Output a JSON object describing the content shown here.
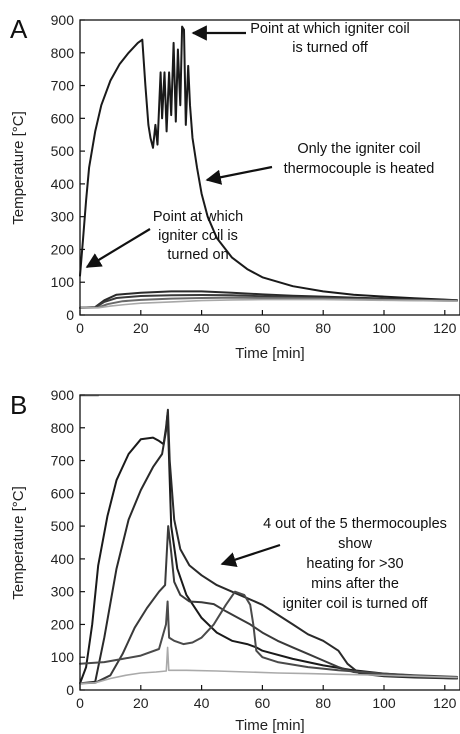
{
  "chart_data": [
    {
      "panel": "A",
      "type": "line",
      "xlabel": "Time [min]",
      "ylabel": "Temperature [°C]",
      "xlim": [
        0,
        125
      ],
      "ylim": [
        0,
        900
      ],
      "xticks": [
        "0",
        "20",
        "40",
        "60",
        "80",
        "100",
        "120"
      ],
      "yticks": [
        "0",
        "100",
        "200",
        "300",
        "400",
        "500",
        "600",
        "700",
        "800",
        "900"
      ],
      "grid": false,
      "legend": "none",
      "series": [
        {
          "color": "#1a1a1a",
          "points": [
            [
              0,
              120
            ],
            [
              1,
              230
            ],
            [
              2,
              350
            ],
            [
              3,
              450
            ],
            [
              5,
              560
            ],
            [
              7,
              640
            ],
            [
              10,
              715
            ],
            [
              13,
              765
            ],
            [
              16,
              800
            ],
            [
              19,
              830
            ],
            [
              20.5,
              840
            ],
            [
              21.5,
              700
            ],
            [
              22.5,
              580
            ],
            [
              23.2,
              540
            ],
            [
              24,
              510
            ],
            [
              24.8,
              580
            ],
            [
              25.5,
              520
            ],
            [
              26.5,
              740
            ],
            [
              27,
              600
            ],
            [
              27.8,
              740
            ],
            [
              28.5,
              560
            ],
            [
              29.3,
              740
            ],
            [
              30,
              610
            ],
            [
              30.8,
              830
            ],
            [
              31.5,
              590
            ],
            [
              32.2,
              810
            ],
            [
              33,
              640
            ],
            [
              33.6,
              880
            ],
            [
              34.2,
              870
            ],
            [
              34.8,
              580
            ],
            [
              35.6,
              760
            ],
            [
              36.2,
              640
            ],
            [
              37,
              540
            ],
            [
              38.5,
              450
            ],
            [
              40,
              370
            ],
            [
              42,
              300
            ],
            [
              45,
              235
            ],
            [
              50,
              175
            ],
            [
              55,
              140
            ],
            [
              60,
              115
            ],
            [
              70,
              88
            ],
            [
              80,
              72
            ],
            [
              90,
              62
            ],
            [
              100,
              56
            ],
            [
              110,
              51
            ],
            [
              120,
              47
            ],
            [
              124,
              45
            ]
          ]
        },
        {
          "color": "#2a2a2a",
          "points": [
            [
              0,
              22
            ],
            [
              5,
              24
            ],
            [
              8,
              45
            ],
            [
              12,
              62
            ],
            [
              20,
              68
            ],
            [
              30,
              72
            ],
            [
              40,
              72
            ],
            [
              50,
              68
            ],
            [
              60,
              63
            ],
            [
              70,
              59
            ],
            [
              80,
              56
            ],
            [
              90,
              53
            ],
            [
              100,
              50
            ],
            [
              110,
              48
            ],
            [
              124,
              45
            ]
          ]
        },
        {
          "color": "#3a3a3a",
          "points": [
            [
              0,
              22
            ],
            [
              5,
              23
            ],
            [
              8,
              40
            ],
            [
              12,
              52
            ],
            [
              20,
              58
            ],
            [
              30,
              60
            ],
            [
              40,
              61
            ],
            [
              50,
              60
            ],
            [
              60,
              57
            ],
            [
              70,
              54
            ],
            [
              80,
              52
            ],
            [
              90,
              50
            ],
            [
              100,
              48
            ],
            [
              110,
              46
            ],
            [
              124,
              44
            ]
          ]
        },
        {
          "color": "#6a6a6a",
          "points": [
            [
              0,
              22
            ],
            [
              6,
              23
            ],
            [
              9,
              33
            ],
            [
              14,
              42
            ],
            [
              20,
              46
            ],
            [
              30,
              50
            ],
            [
              40,
              52
            ],
            [
              50,
              53
            ],
            [
              60,
              52
            ],
            [
              70,
              51
            ],
            [
              80,
              50
            ],
            [
              90,
              48
            ],
            [
              100,
              46
            ],
            [
              110,
              45
            ],
            [
              124,
              43
            ]
          ]
        },
        {
          "color": "#a8a8a8",
          "points": [
            [
              0,
              22
            ],
            [
              6,
              22
            ],
            [
              10,
              27
            ],
            [
              15,
              32
            ],
            [
              20,
              36
            ],
            [
              30,
              40
            ],
            [
              40,
              44
            ],
            [
              50,
              46
            ],
            [
              60,
              47
            ],
            [
              70,
              47
            ],
            [
              80,
              47
            ],
            [
              90,
              46
            ],
            [
              100,
              45
            ],
            [
              110,
              44
            ],
            [
              124,
              42
            ]
          ]
        }
      ],
      "annotations": [
        "Point at which igniter coil is turned off",
        "Only the igniter coil thermocouple is heated",
        "Point at which igniter coil is turned on"
      ]
    },
    {
      "panel": "B",
      "type": "line",
      "xlabel": "Time [min]",
      "ylabel": "Temperature [°C]",
      "xlim": [
        0,
        125
      ],
      "ylim": [
        0,
        900
      ],
      "xticks": [
        "0",
        "20",
        "40",
        "60",
        "80",
        "100",
        "120"
      ],
      "yticks": [
        "0",
        "100",
        "200",
        "300",
        "400",
        "500",
        "600",
        "700",
        "800",
        "900"
      ],
      "grid": false,
      "legend": "none",
      "series": [
        {
          "color": "#1a1a1a",
          "points": [
            [
              0,
              20
            ],
            [
              2,
              70
            ],
            [
              4,
              200
            ],
            [
              6,
              380
            ],
            [
              9,
              530
            ],
            [
              12,
              640
            ],
            [
              16,
              720
            ],
            [
              20,
              765
            ],
            [
              24,
              770
            ],
            [
              26,
              760
            ],
            [
              27.5,
              750
            ],
            [
              28.3,
              800
            ],
            [
              28.8,
              845
            ],
            [
              29.3,
              700
            ],
            [
              30,
              500
            ],
            [
              32,
              370
            ],
            [
              35,
              290
            ],
            [
              40,
              220
            ],
            [
              45,
              175
            ],
            [
              50,
              150
            ],
            [
              55,
              140
            ],
            [
              58,
              130
            ],
            [
              60,
              120
            ],
            [
              70,
              95
            ],
            [
              80,
              75
            ],
            [
              90,
              60
            ],
            [
              100,
              50
            ],
            [
              110,
              44
            ],
            [
              124,
              38
            ]
          ]
        },
        {
          "color": "#2a2a2a",
          "points": [
            [
              0,
              20
            ],
            [
              5,
              25
            ],
            [
              8,
              160
            ],
            [
              12,
              370
            ],
            [
              16,
              520
            ],
            [
              20,
              610
            ],
            [
              24,
              680
            ],
            [
              27,
              720
            ],
            [
              28.3,
              790
            ],
            [
              28.9,
              855
            ],
            [
              29.5,
              700
            ],
            [
              31,
              520
            ],
            [
              33,
              430
            ],
            [
              36,
              380
            ],
            [
              40,
              350
            ],
            [
              45,
              320
            ],
            [
              50,
              300
            ],
            [
              55,
              280
            ],
            [
              60,
              260
            ],
            [
              65,
              230
            ],
            [
              70,
              200
            ],
            [
              75,
              170
            ],
            [
              80,
              150
            ],
            [
              85,
              120
            ],
            [
              88,
              80
            ],
            [
              92,
              50
            ],
            [
              100,
              42
            ],
            [
              110,
              38
            ],
            [
              124,
              35
            ]
          ]
        },
        {
          "color": "#3a3a3a",
          "points": [
            [
              0,
              20
            ],
            [
              5,
              22
            ],
            [
              10,
              45
            ],
            [
              14,
              110
            ],
            [
              18,
              190
            ],
            [
              22,
              250
            ],
            [
              26,
              300
            ],
            [
              28,
              320
            ],
            [
              29,
              500
            ],
            [
              30,
              420
            ],
            [
              31,
              330
            ],
            [
              33,
              290
            ],
            [
              36,
              270
            ],
            [
              40,
              268
            ],
            [
              44,
              262
            ],
            [
              48,
              240
            ],
            [
              52,
              220
            ],
            [
              56,
              200
            ],
            [
              60,
              175
            ],
            [
              65,
              150
            ],
            [
              70,
              130
            ],
            [
              75,
              110
            ],
            [
              80,
              90
            ],
            [
              85,
              70
            ],
            [
              90,
              55
            ],
            [
              100,
              45
            ],
            [
              110,
              40
            ],
            [
              124,
              35
            ]
          ]
        },
        {
          "color": "#4a4a4a",
          "points": [
            [
              0,
              80
            ],
            [
              3,
              82
            ],
            [
              8,
              85
            ],
            [
              14,
              95
            ],
            [
              20,
              105
            ],
            [
              26,
              125
            ],
            [
              28.3,
              200
            ],
            [
              28.8,
              270
            ],
            [
              29.3,
              160
            ],
            [
              31,
              150
            ],
            [
              34,
              140
            ],
            [
              37,
              145
            ],
            [
              40,
              160
            ],
            [
              44,
              200
            ],
            [
              48,
              260
            ],
            [
              51,
              300
            ],
            [
              54,
              290
            ],
            [
              56,
              260
            ],
            [
              57,
              200
            ],
            [
              58,
              120
            ],
            [
              60,
              100
            ],
            [
              65,
              85
            ],
            [
              75,
              70
            ],
            [
              85,
              60
            ],
            [
              100,
              50
            ],
            [
              110,
              45
            ],
            [
              124,
              40
            ]
          ]
        },
        {
          "color": "#aaaaaa",
          "points": [
            [
              0,
              20
            ],
            [
              5,
              22
            ],
            [
              10,
              35
            ],
            [
              15,
              45
            ],
            [
              20,
              52
            ],
            [
              25,
              55
            ],
            [
              28.4,
              58
            ],
            [
              28.8,
              130
            ],
            [
              29.2,
              60
            ],
            [
              35,
              60
            ],
            [
              45,
              58
            ],
            [
              55,
              55
            ],
            [
              65,
              52
            ],
            [
              75,
              50
            ],
            [
              85,
              48
            ],
            [
              100,
              45
            ],
            [
              110,
              42
            ],
            [
              124,
              38
            ]
          ]
        },
        {
          "color": "#aaaaaa",
          "points": [
            [
              0,
              898
            ],
            [
              6,
              898
            ]
          ]
        }
      ],
      "annotations": [
        "4 out of the 5 thermocouples show heating for >30 mins after the igniter coil is turned off"
      ]
    }
  ]
}
